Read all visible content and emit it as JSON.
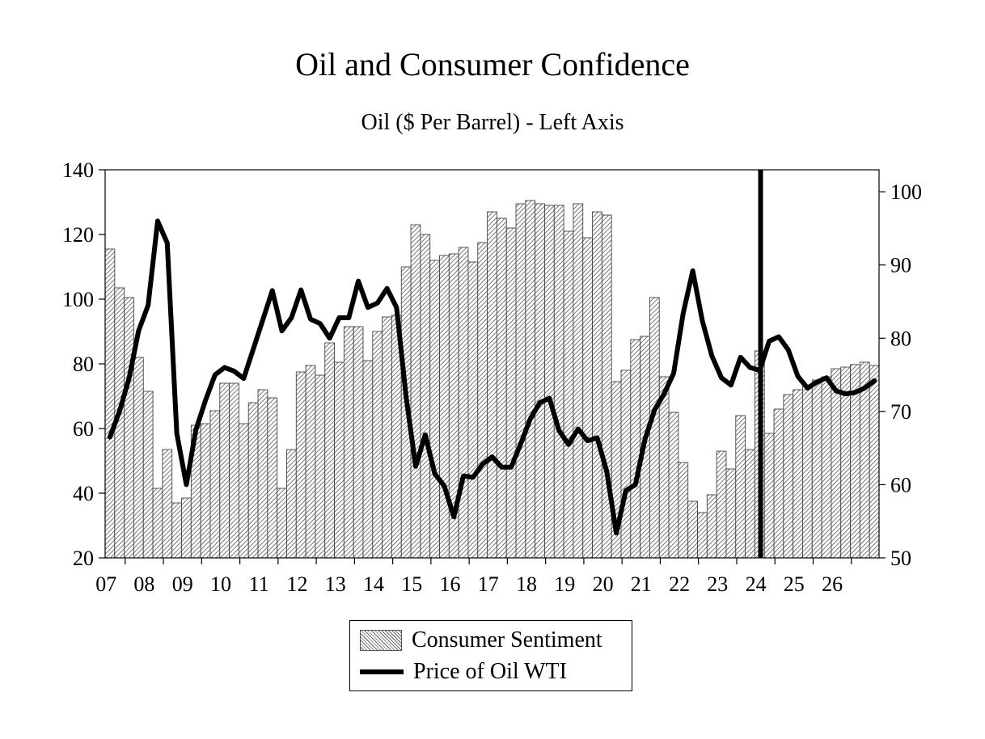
{
  "chart_data": {
    "type": "bar+line",
    "title": "Oil and Consumer Confidence",
    "subtitle": "Oil ($ Per Barrel) - Left Axis",
    "left_axis": {
      "min": 20,
      "max": 140,
      "ticks": [
        "20",
        "40",
        "60",
        "80",
        "100",
        "120",
        "140"
      ]
    },
    "right_axis": {
      "min": 50,
      "max": 103,
      "ticks": [
        "50",
        "60",
        "70",
        "80",
        "90",
        "100"
      ]
    },
    "x_ticks": [
      "07",
      "08",
      "09",
      "10",
      "11",
      "12",
      "13",
      "14",
      "15",
      "16",
      "17",
      "18",
      "19",
      "20",
      "21",
      "22",
      "23",
      "24",
      "25",
      "26"
    ],
    "vertical_marker_index": 68.6,
    "series": [
      {
        "name": "Consumer Sentiment",
        "kind": "bar",
        "axis": "left",
        "values": [
          115.5,
          103.5,
          100.5,
          82,
          71.5,
          41.5,
          53.5,
          37,
          38.5,
          61,
          61.5,
          65.5,
          74,
          74,
          61.5,
          68,
          72,
          69.5,
          41.5,
          53.5,
          77.5,
          79.5,
          76.5,
          86.5,
          80.5,
          91.5,
          91.5,
          81,
          90,
          94.5,
          95,
          110,
          123,
          120,
          112,
          113.5,
          114,
          116,
          111.5,
          117.5,
          127,
          125,
          122,
          129.5,
          130.5,
          129.5,
          129,
          129,
          121,
          129.5,
          119,
          127,
          126,
          74.5,
          78,
          87.5,
          88.5,
          100.5,
          76,
          65,
          49.5,
          37.5,
          34,
          39.5,
          53,
          47.5,
          64,
          53.5,
          84,
          58.5,
          66,
          70.5,
          72,
          73,
          75,
          76,
          78.5,
          79,
          79.8,
          80.5,
          79.5
        ]
      },
      {
        "name": "Price of Oil WTI",
        "kind": "line",
        "axis": "right",
        "values": [
          66.5,
          70,
          74.5,
          81,
          84.5,
          96,
          93,
          67,
          60,
          67.5,
          71.5,
          75,
          76,
          75.5,
          74.5,
          78.5,
          82.5,
          86.5,
          81,
          82.8,
          86.6,
          82.6,
          82,
          80,
          82.8,
          82.8,
          87.8,
          84.2,
          84.8,
          86.8,
          84.2,
          72,
          62.5,
          66.8,
          61.5,
          59.8,
          55.6,
          61.2,
          61,
          62.8,
          63.8,
          62.4,
          62.4,
          65.6,
          69,
          71.2,
          71.8,
          67.4,
          65.5,
          67.6,
          66,
          66.4,
          61.8,
          53.4,
          59.2,
          60,
          66.2,
          70.2,
          72.4,
          75.2,
          83.4,
          89.2,
          82.4,
          77.6,
          74.6,
          73.6,
          77.4,
          76,
          75.6,
          79.6,
          80.2,
          78.4,
          74.8,
          73.2,
          74,
          74.6,
          72.8,
          72.4,
          72.6,
          73.2,
          74.2
        ]
      }
    ]
  },
  "legend": {
    "bar_label": "Consumer Sentiment",
    "line_label": "Price of Oil WTI"
  },
  "colors": {
    "line": "#000000",
    "bar_hatch": "#555555",
    "bar_border": "#444444",
    "marker": "#000000"
  }
}
